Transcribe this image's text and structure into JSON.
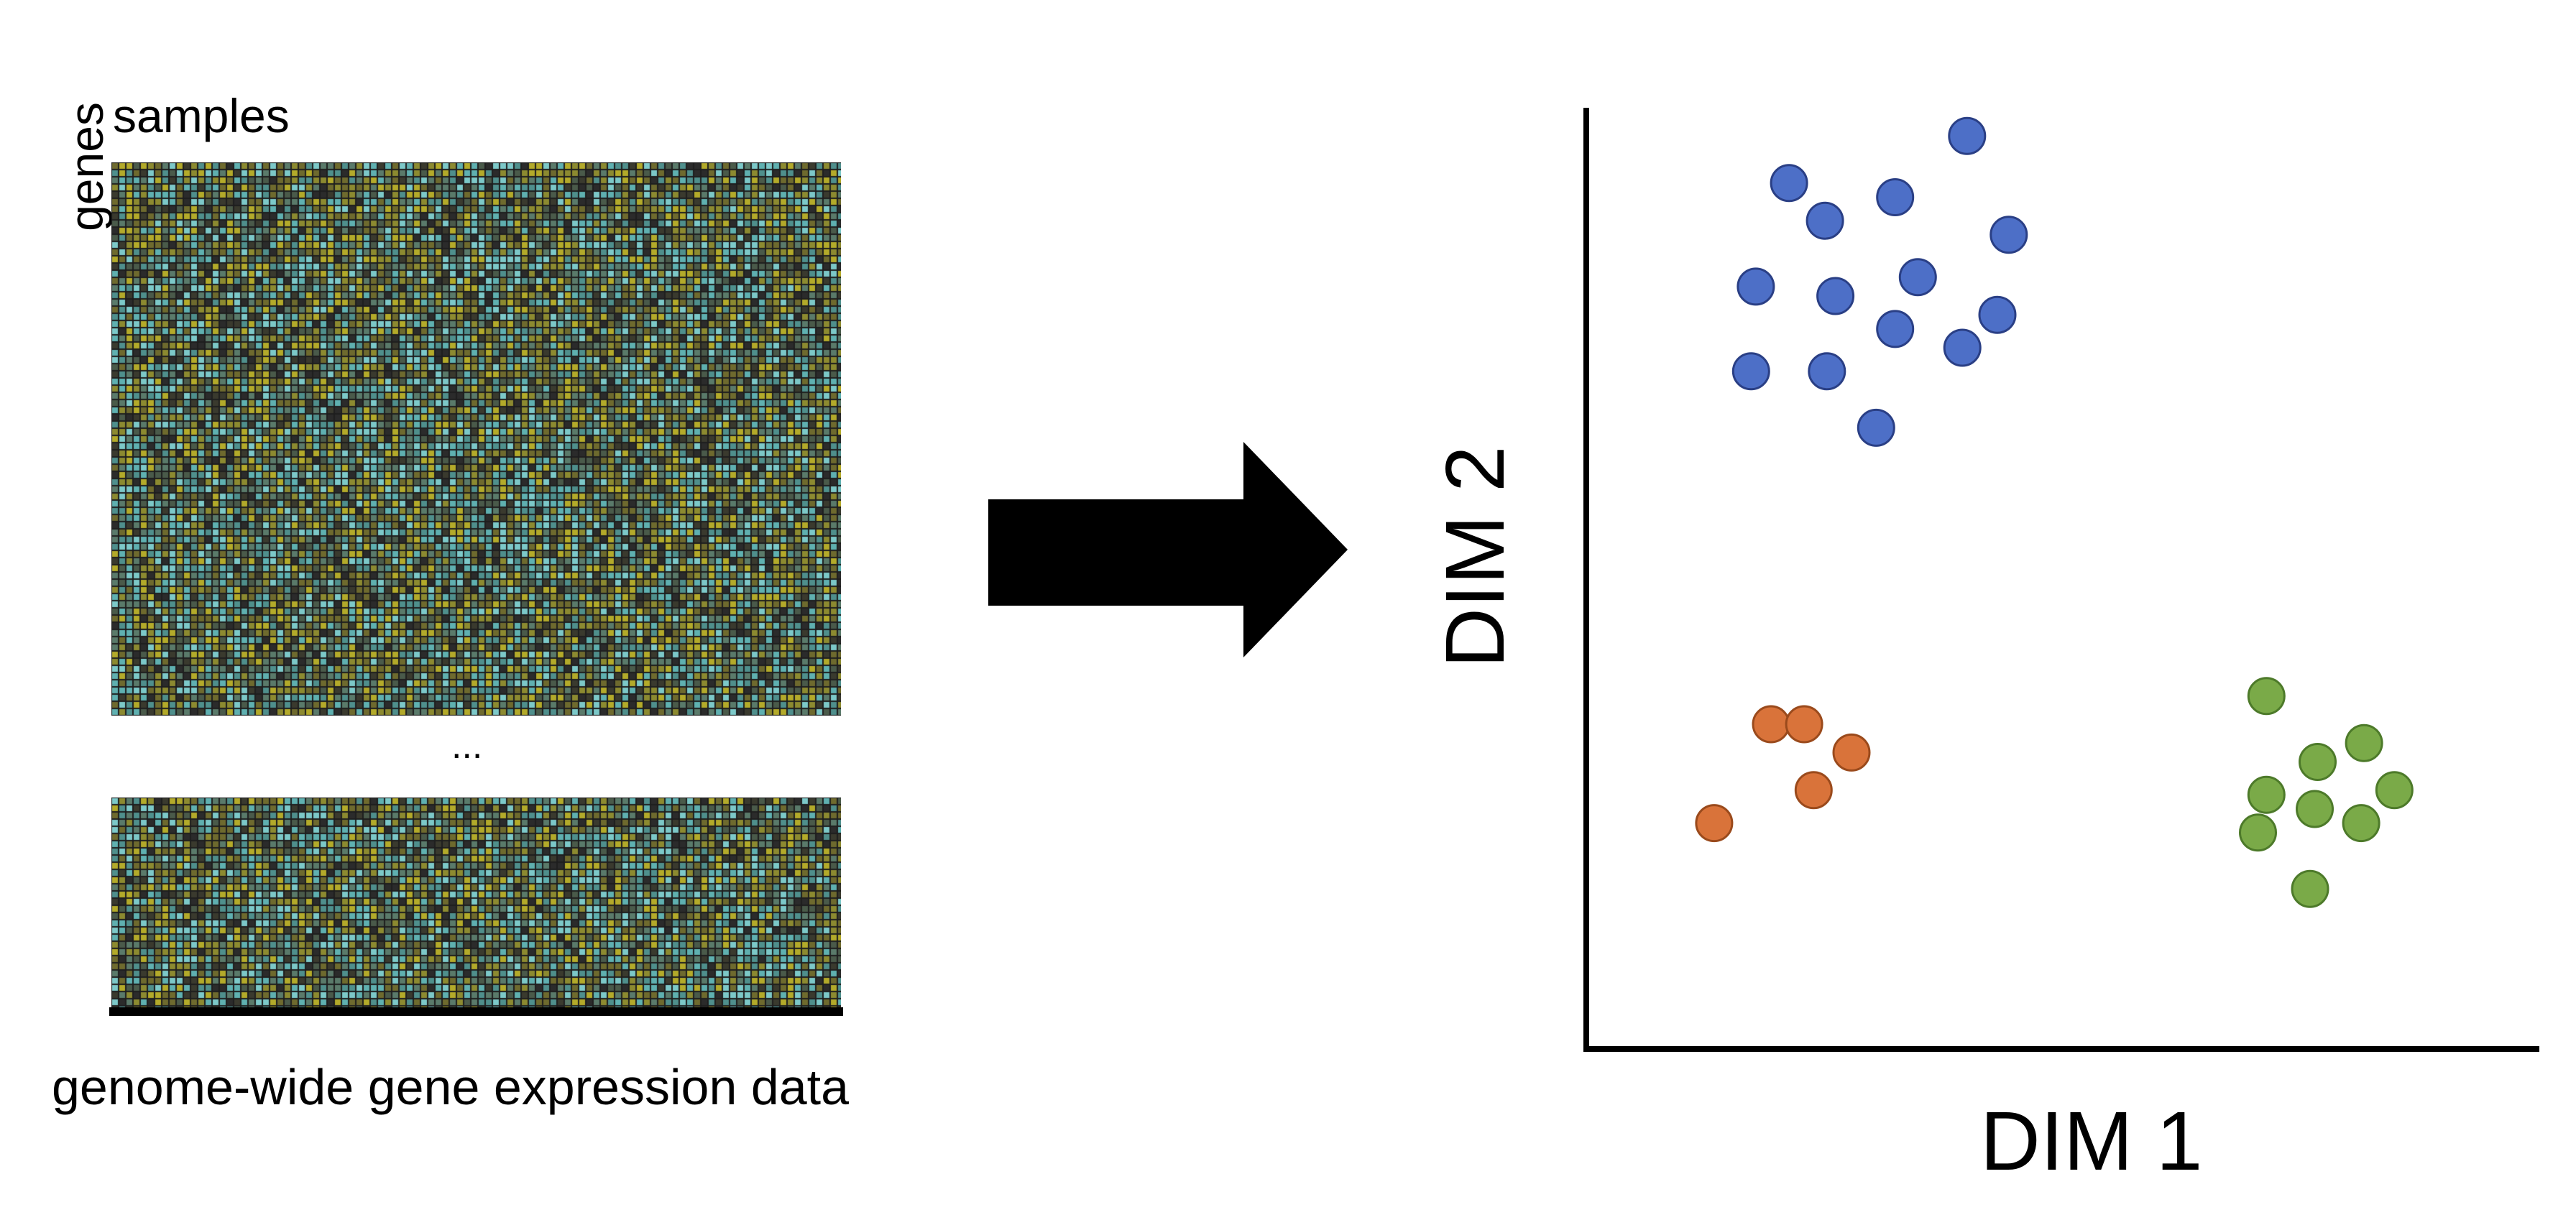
{
  "matrix": {
    "columns_label": "samples",
    "rows_label": "genes",
    "ellipsis": "...",
    "caption": "genome-wide gene expression data",
    "colors": [
      "#2b2b2b",
      "#3a3a2e",
      "#4a5a4a",
      "#5a7a6a",
      "#4f8f8c",
      "#5fb0b0",
      "#7cc8c8",
      "#6e6a2e",
      "#8c8a30",
      "#b3aa2a"
    ]
  },
  "arrow": {
    "color": "#000000",
    "direction": "right"
  },
  "chart_data": {
    "type": "scatter",
    "xlabel": "DIM 1",
    "ylabel": "DIM 2",
    "xlim": [
      0,
      100
    ],
    "ylim": [
      0,
      100
    ],
    "grid": false,
    "series": [
      {
        "color": "#4d6fc7",
        "stroke": "#2a3f85",
        "points": [
          [
            40.2,
            97.0
          ],
          [
            21.4,
            92.0
          ],
          [
            32.6,
            90.5
          ],
          [
            25.2,
            88.0
          ],
          [
            44.6,
            86.5
          ],
          [
            35.0,
            82.0
          ],
          [
            17.9,
            81.0
          ],
          [
            26.3,
            80.0
          ],
          [
            43.4,
            78.0
          ],
          [
            32.6,
            76.5
          ],
          [
            39.7,
            74.5
          ],
          [
            17.4,
            72.0
          ],
          [
            25.4,
            72.0
          ],
          [
            30.6,
            66.0
          ]
        ]
      },
      {
        "color": "#d9733a",
        "stroke": "#9a4a1c",
        "points": [
          [
            19.5,
            34.5
          ],
          [
            23.0,
            34.5
          ],
          [
            28.0,
            31.5
          ],
          [
            24.0,
            27.5
          ],
          [
            13.5,
            24.0
          ]
        ]
      },
      {
        "color": "#7aaa48",
        "stroke": "#4d7a2a",
        "points": [
          [
            71.8,
            37.5
          ],
          [
            82.1,
            32.5
          ],
          [
            77.2,
            30.5
          ],
          [
            85.3,
            27.5
          ],
          [
            71.8,
            27.0
          ],
          [
            76.9,
            25.5
          ],
          [
            81.8,
            24.0
          ],
          [
            70.9,
            23.0
          ],
          [
            76.4,
            17.0
          ]
        ]
      }
    ]
  }
}
